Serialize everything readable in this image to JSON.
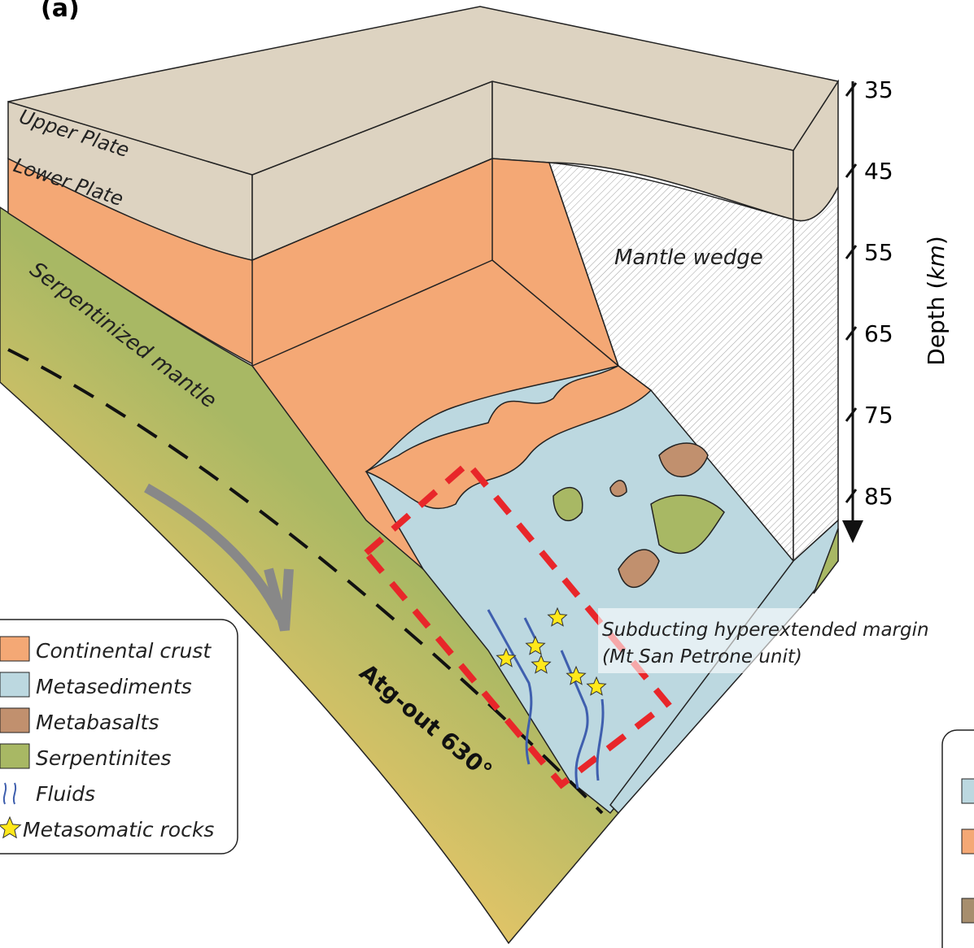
{
  "panel_label": "(a)",
  "labels": {
    "upper_plate": "Upper Plate",
    "lower_plate": "Lower Plate",
    "serpentinized_mantle": "Serpentinized mantle",
    "mantle_wedge": "Mantle wedge",
    "margin": [
      "Subducting hyperextended margin",
      "(Mt San Petrone unit)"
    ],
    "isotherm": "Atg-out 630°"
  },
  "depth_axis": {
    "ticks": [
      35,
      45,
      55,
      65,
      75,
      85
    ],
    "label": "Depth (",
    "unit": "km",
    "label_end": ")"
  },
  "legend": [
    {
      "label": "Continental crust",
      "symbol": "swatch",
      "color": "#f4a875"
    },
    {
      "label": "Metasediments",
      "symbol": "swatch",
      "color": "#bcd8e0"
    },
    {
      "label": "Metabasalts",
      "symbol": "swatch",
      "color": "#c1906e"
    },
    {
      "label": "Serpentinites",
      "symbol": "swatch",
      "color": "#a8b864"
    },
    {
      "label": "Fluids",
      "symbol": "arrows",
      "color": "#3f5fae"
    },
    {
      "label": "Metasomatic rocks",
      "symbol": "star",
      "color": "#ffe81a"
    }
  ]
}
